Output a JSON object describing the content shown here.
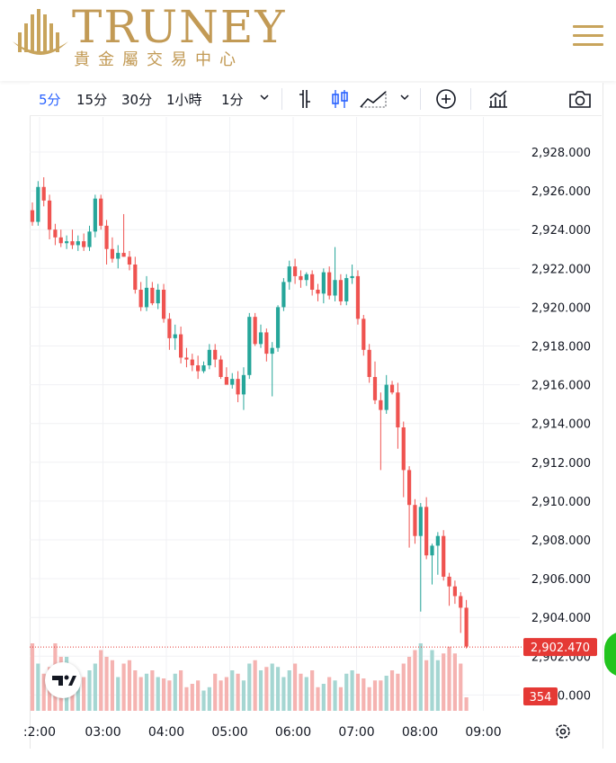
{
  "header": {
    "logo_text": "TRUNEY",
    "logo_subtitle": "貴金屬交易中心"
  },
  "toolbar": {
    "intervals": [
      "5分",
      "15分",
      "30分",
      "1小時",
      "1分"
    ],
    "active_interval": "5分"
  },
  "colors": {
    "up": "#26a69a",
    "down": "#ef5350",
    "up_volume": "#a5d6d2",
    "down_volume": "#f5b3b1",
    "brand": "#c29a55",
    "price_tag": "#e53935"
  },
  "chart_data": {
    "type": "candlestick",
    "y_ticks": [
      "2,928.000",
      "2,926.000",
      "2,924.000",
      "2,922.000",
      "2,920.000",
      "2,918.000",
      "2,916.000",
      "2,914.000",
      "2,912.000",
      "2,910.000",
      "2,908.000",
      "2,906.000",
      "2,904.000",
      "2,902.000",
      "2,900.000"
    ],
    "ylim": [
      2899.5,
      2929.8
    ],
    "x_ticks": [
      ":2:00",
      "03:00",
      "04:00",
      "05:00",
      "06:00",
      "07:00",
      "08:00",
      "09:00"
    ],
    "last_price": "2,902.470",
    "volume_label": "354",
    "grid": true,
    "ohlc": [
      [
        2925.0,
        2925.4,
        2924.2,
        2924.4
      ],
      [
        2924.4,
        2926.5,
        2924.2,
        2926.2
      ],
      [
        2926.2,
        2926.7,
        2925.2,
        2925.5
      ],
      [
        2925.5,
        2925.8,
        2923.5,
        2924.0
      ],
      [
        2924.0,
        2924.3,
        2923.2,
        2923.6
      ],
      [
        2923.6,
        2924.0,
        2923.1,
        2923.3
      ],
      [
        2923.3,
        2923.7,
        2923.0,
        2923.4
      ],
      [
        2923.4,
        2924.0,
        2923.0,
        2923.2
      ],
      [
        2923.2,
        2923.7,
        2922.9,
        2923.4
      ],
      [
        2923.4,
        2923.8,
        2922.9,
        2923.1
      ],
      [
        2923.1,
        2924.2,
        2922.9,
        2923.9
      ],
      [
        2923.9,
        2925.8,
        2923.6,
        2925.6
      ],
      [
        2925.6,
        2925.8,
        2924.0,
        2924.2
      ],
      [
        2924.2,
        2924.5,
        2922.2,
        2923.0
      ],
      [
        2923.0,
        2923.6,
        2922.3,
        2922.5
      ],
      [
        2922.5,
        2923.2,
        2922.0,
        2922.8
      ],
      [
        2922.8,
        2924.8,
        2922.6,
        2922.6
      ],
      [
        2922.6,
        2922.9,
        2921.9,
        2922.2
      ],
      [
        2922.2,
        2922.6,
        2920.7,
        2920.9
      ],
      [
        2920.9,
        2921.3,
        2919.8,
        2920.0
      ],
      [
        2920.0,
        2921.6,
        2919.8,
        2921.0
      ],
      [
        2921.0,
        2921.3,
        2920.1,
        2920.2
      ],
      [
        2920.2,
        2921.2,
        2919.9,
        2920.9
      ],
      [
        2920.9,
        2921.2,
        2919.2,
        2919.4
      ],
      [
        2919.4,
        2919.7,
        2917.8,
        2918.4
      ],
      [
        2918.4,
        2919.1,
        2917.8,
        2918.6
      ],
      [
        2918.6,
        2919.0,
        2917.1,
        2917.4
      ],
      [
        2917.4,
        2917.9,
        2916.9,
        2917.3
      ],
      [
        2917.3,
        2917.6,
        2916.7,
        2917.0
      ],
      [
        2917.0,
        2917.5,
        2916.3,
        2916.7
      ],
      [
        2916.7,
        2917.2,
        2916.6,
        2917.0
      ],
      [
        2917.0,
        2918.1,
        2916.8,
        2917.8
      ],
      [
        2917.8,
        2918.1,
        2916.9,
        2917.3
      ],
      [
        2917.3,
        2917.5,
        2916.3,
        2916.4
      ],
      [
        2916.4,
        2916.9,
        2916.1,
        2916.0
      ],
      [
        2916.0,
        2916.6,
        2915.8,
        2916.3
      ],
      [
        2916.3,
        2916.7,
        2915.1,
        2915.5
      ],
      [
        2915.5,
        2916.9,
        2914.7,
        2916.5
      ],
      [
        2916.5,
        2919.7,
        2916.3,
        2919.5
      ],
      [
        2919.5,
        2919.7,
        2918.0,
        2918.1
      ],
      [
        2918.1,
        2919.1,
        2917.9,
        2918.7
      ],
      [
        2918.7,
        2918.9,
        2917.2,
        2917.6
      ],
      [
        2917.6,
        2918.2,
        2915.4,
        2917.9
      ],
      [
        2917.9,
        2920.1,
        2917.7,
        2920.0
      ],
      [
        2920.0,
        2921.5,
        2919.8,
        2921.3
      ],
      [
        2921.3,
        2922.4,
        2920.9,
        2922.1
      ],
      [
        2922.1,
        2922.5,
        2921.2,
        2921.6
      ],
      [
        2921.6,
        2921.9,
        2921.0,
        2921.4
      ],
      [
        2921.4,
        2921.8,
        2921.1,
        2921.7
      ],
      [
        2921.7,
        2921.9,
        2920.6,
        2920.9
      ],
      [
        2920.9,
        2921.2,
        2920.3,
        2920.7
      ],
      [
        2920.7,
        2922.0,
        2920.2,
        2921.8
      ],
      [
        2921.8,
        2922.1,
        2920.4,
        2920.6
      ],
      [
        2920.6,
        2923.1,
        2920.3,
        2921.4
      ],
      [
        2921.4,
        2921.7,
        2920.1,
        2920.3
      ],
      [
        2920.3,
        2921.7,
        2920.1,
        2921.5
      ],
      [
        2921.5,
        2922.2,
        2921.2,
        2921.6
      ],
      [
        2921.6,
        2921.9,
        2919.1,
        2919.4
      ],
      [
        2919.4,
        2919.6,
        2917.5,
        2917.8
      ],
      [
        2917.8,
        2918.1,
        2916.1,
        2916.4
      ],
      [
        2916.4,
        2917.2,
        2915.0,
        2915.2
      ],
      [
        2915.2,
        2915.6,
        2911.6,
        2914.7
      ],
      [
        2914.7,
        2916.5,
        2914.5,
        2916.0
      ],
      [
        2916.0,
        2916.2,
        2915.5,
        2915.6
      ],
      [
        2915.6,
        2916.1,
        2912.7,
        2913.8
      ],
      [
        2913.8,
        2914.1,
        2910.2,
        2911.6
      ],
      [
        2911.6,
        2911.8,
        2907.6,
        2909.8
      ],
      [
        2909.8,
        2910.1,
        2907.8,
        2908.2
      ],
      [
        2908.2,
        2909.9,
        2904.3,
        2909.7
      ],
      [
        2909.7,
        2910.2,
        2907.0,
        2907.2
      ],
      [
        2907.2,
        2907.8,
        2905.7,
        2907.7
      ],
      [
        2907.7,
        2908.4,
        2906.2,
        2908.2
      ],
      [
        2908.2,
        2908.5,
        2905.9,
        2906.1
      ],
      [
        2906.1,
        2906.3,
        2904.6,
        2905.6
      ],
      [
        2905.6,
        2905.9,
        2904.7,
        2905.1
      ],
      [
        2905.1,
        2905.3,
        2903.2,
        2904.5
      ],
      [
        2904.5,
        2904.9,
        2902.4,
        2902.5
      ]
    ],
    "volume": [
      1.0,
      0.7,
      0.55,
      0.65,
      1.0,
      0.8,
      0.8,
      0.6,
      0.55,
      0.5,
      0.6,
      0.7,
      0.9,
      0.8,
      0.75,
      0.5,
      0.7,
      0.75,
      0.6,
      0.5,
      0.55,
      0.6,
      0.5,
      0.48,
      0.45,
      0.55,
      0.6,
      0.35,
      0.4,
      0.45,
      0.3,
      0.35,
      0.55,
      0.45,
      0.5,
      0.6,
      0.55,
      0.45,
      0.7,
      0.75,
      0.6,
      0.65,
      0.7,
      0.65,
      0.5,
      0.6,
      0.7,
      0.55,
      0.5,
      0.6,
      0.35,
      0.4,
      0.5,
      0.45,
      0.35,
      0.55,
      0.6,
      0.55,
      0.48,
      0.35,
      0.45,
      0.45,
      0.52,
      0.6,
      0.55,
      0.7,
      0.8,
      0.9,
      1.0,
      0.75,
      0.9,
      0.75,
      0.85,
      0.95,
      0.85,
      0.7,
      0.2
    ]
  }
}
